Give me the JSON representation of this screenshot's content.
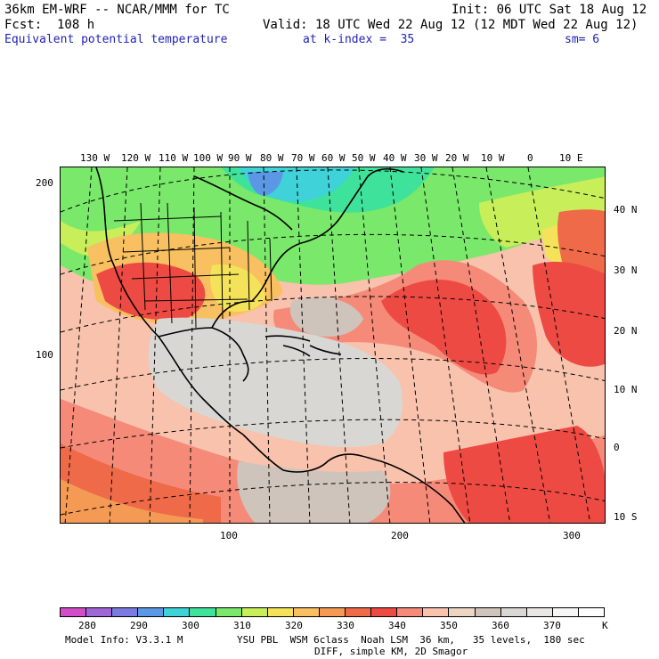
{
  "header": {
    "model": "36km EM-WRF -- NCAR/MMM for TC",
    "init": "Init: 06 UTC Sat 18 Aug 12",
    "fcst": "Fcst:  108 h",
    "valid": "Valid: 18 UTC Wed 22 Aug 12 (12 MDT Wed 22 Aug 12)",
    "field": "Equivalent potential temperature",
    "level": "at k-index =  35",
    "smooth": "sm= 6"
  },
  "map": {
    "lon_labels": [
      "130 W",
      "120 W",
      "110 W",
      "100 W",
      "90 W",
      "80 W",
      "70 W",
      "60 W",
      "50 W",
      "40 W",
      "30 W",
      "20 W",
      "10 W",
      "0",
      "10 E"
    ],
    "lat_labels": [
      "40 N",
      "30 N",
      "20 N",
      "10 N",
      "0",
      "10 S"
    ],
    "grid_y_labels": [
      "200",
      "100"
    ],
    "grid_x_labels": [
      "100",
      "200",
      "300"
    ]
  },
  "legend": {
    "colors": [
      "#d24ec8",
      "#a066d8",
      "#7a7be0",
      "#5c97e6",
      "#3fd2d8",
      "#3fe29a",
      "#7ae86a",
      "#c8ee5a",
      "#f4e35a",
      "#f8c060",
      "#f49a54",
      "#ee6a48",
      "#ee4a44",
      "#f58a78",
      "#f8c2ad",
      "#ecd5c3",
      "#cfc4bb",
      "#d9d7d3",
      "#e9e7e5",
      "#f6f6f6",
      "#ffffff"
    ],
    "labels": [
      "280",
      "290",
      "300",
      "310",
      "320",
      "330",
      "340",
      "350",
      "360",
      "370"
    ],
    "units": "K"
  },
  "footer": {
    "line1_left": "Model Info: V3.3.1 M",
    "line1_right": "YSU PBL  WSM 6class  Noah LSM  36 km,   35 levels,  180 sec",
    "line2": "DIFF, simple KM, 2D Smagor"
  }
}
